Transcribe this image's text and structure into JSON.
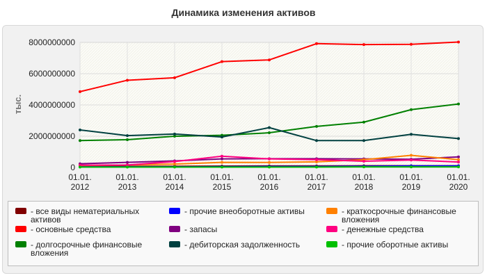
{
  "title": "Динамика изменения активов",
  "chart_data": {
    "type": "line",
    "title": "Динамика изменения активов",
    "xlabel": "",
    "ylabel": "тыс.",
    "categories": [
      "01.01.\n2012",
      "01.01.\n2013",
      "01.01.\n2014",
      "01.01.\n2015",
      "01.01.\n2016",
      "01.01.\n2017",
      "01.01.\n2018",
      "01.01.\n2019",
      "01.01.\n2020"
    ],
    "ylim": [
      0,
      8000000000
    ],
    "yticks": [
      "0",
      "2000000000",
      "4000000000",
      "6000000000",
      "8000000000"
    ],
    "grid": true,
    "legend_position": "bottom",
    "series": [
      {
        "name": "- все виды нематериальных активов",
        "color": "#800000",
        "values": [
          60000000,
          70000000,
          80000000,
          90000000,
          100000000,
          100000000,
          110000000,
          110000000,
          110000000
        ]
      },
      {
        "name": "- основные средства",
        "color": "#ff0000",
        "values": [
          4850000000,
          5580000000,
          5740000000,
          6770000000,
          6880000000,
          7920000000,
          7860000000,
          7880000000,
          8020000000
        ]
      },
      {
        "name": "- долгосрочные финансовые вложения",
        "color": "#008000",
        "values": [
          1720000000,
          1780000000,
          2000000000,
          2060000000,
          2220000000,
          2630000000,
          2900000000,
          3700000000,
          4060000000
        ]
      },
      {
        "name": "- прочие внеоборотные активы",
        "color": "#0000ff",
        "values": [
          40000000,
          40000000,
          40000000,
          50000000,
          60000000,
          60000000,
          80000000,
          100000000,
          100000000
        ]
      },
      {
        "name": "- запасы",
        "color": "#800080",
        "values": [
          240000000,
          330000000,
          420000000,
          550000000,
          560000000,
          560000000,
          550000000,
          530000000,
          680000000
        ]
      },
      {
        "name": "- дебиторская задолженность",
        "color": "#004040",
        "values": [
          2400000000,
          2040000000,
          2140000000,
          1950000000,
          2550000000,
          1720000000,
          1720000000,
          2120000000,
          1850000000
        ]
      },
      {
        "name": "- краткосрочные финансовые вложения",
        "color": "#ff8000",
        "values": [
          130000000,
          160000000,
          220000000,
          330000000,
          320000000,
          360000000,
          500000000,
          780000000,
          500000000
        ]
      },
      {
        "name": "- денежные средства",
        "color": "#ff0080",
        "values": [
          150000000,
          160000000,
          380000000,
          720000000,
          550000000,
          500000000,
          400000000,
          480000000,
          350000000
        ]
      },
      {
        "name": "- прочие оборотные активы",
        "color": "#00c000",
        "values": [
          30000000,
          30000000,
          30000000,
          30000000,
          30000000,
          30000000,
          40000000,
          40000000,
          40000000
        ]
      }
    ]
  },
  "legend": {
    "items": [
      {
        "label": "- все виды нематериальных активов",
        "color": "#800000"
      },
      {
        "label": "- основные средства",
        "color": "#ff0000"
      },
      {
        "label": "- долгосрочные финансовые вложения",
        "color": "#008000"
      },
      {
        "label": "- прочие внеоборотные активы",
        "color": "#0000ff"
      },
      {
        "label": "- запасы",
        "color": "#800080"
      },
      {
        "label": "- дебиторская задолженность",
        "color": "#004040"
      },
      {
        "label": "- краткосрочные финансовые вложения",
        "color": "#ff8000"
      },
      {
        "label": "- денежные средства",
        "color": "#ff0080"
      },
      {
        "label": "- прочие оборотные активы",
        "color": "#00c000"
      }
    ]
  }
}
